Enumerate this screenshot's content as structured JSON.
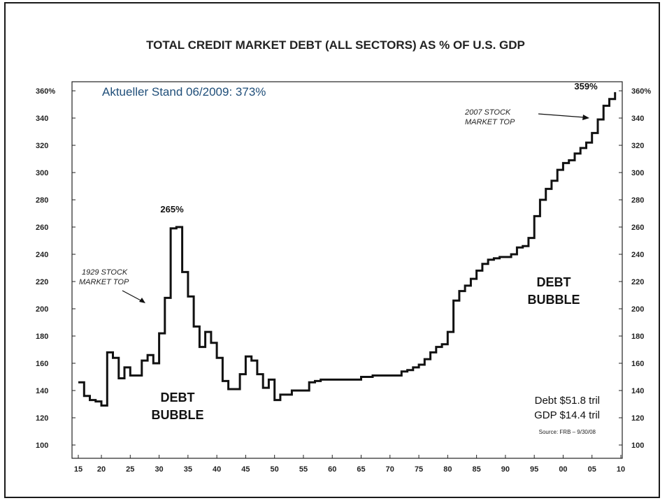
{
  "chart_data": {
    "type": "line",
    "title": "TOTAL CREDIT MARKET DEBT (ALL SECTORS) AS % OF U.S. GDP",
    "xlabel": "",
    "ylabel": "",
    "xlim": [
      1915,
      2010
    ],
    "ylim": [
      100,
      360
    ],
    "x_tick_labels": [
      "15",
      "20",
      "25",
      "30",
      "35",
      "40",
      "45",
      "50",
      "55",
      "60",
      "65",
      "70",
      "75",
      "80",
      "85",
      "90",
      "95",
      "00",
      "05",
      "10"
    ],
    "y_tick_labels": [
      "100",
      "120",
      "140",
      "160",
      "180",
      "200",
      "220",
      "240",
      "260",
      "280",
      "300",
      "320",
      "340",
      "360%"
    ],
    "y_tick_values": [
      100,
      120,
      140,
      160,
      180,
      200,
      220,
      240,
      260,
      280,
      300,
      320,
      340,
      360
    ],
    "step": true,
    "grid": false,
    "series": [
      {
        "x": [
          1916,
          1917,
          1918,
          1919,
          1920,
          1921,
          1922,
          1923,
          1924,
          1925,
          1926,
          1927,
          1928,
          1929,
          1930,
          1931,
          1932,
          1933,
          1934,
          1935,
          1936,
          1937,
          1938,
          1939,
          1940,
          1941,
          1942,
          1943,
          1944,
          1945,
          1946,
          1947,
          1948,
          1949,
          1950,
          1951,
          1952,
          1953,
          1954,
          1955,
          1956,
          1957,
          1958,
          1959,
          1960,
          1961,
          1962,
          1963,
          1964,
          1965,
          1966,
          1967,
          1968,
          1969,
          1970,
          1971,
          1972,
          1973,
          1974,
          1975,
          1976,
          1977,
          1978,
          1979,
          1980,
          1981,
          1982,
          1983,
          1984,
          1985,
          1986,
          1987,
          1988,
          1989,
          1990,
          1991,
          1992,
          1993,
          1994,
          1995,
          1996,
          1997,
          1998,
          1999,
          2000,
          2001,
          2002,
          2003,
          2004,
          2005,
          2006,
          2007,
          2008,
          2009
        ],
        "y": [
          146,
          136,
          133,
          132,
          129,
          168,
          164,
          149,
          157,
          151,
          151,
          162,
          166,
          160,
          182,
          208,
          259,
          260,
          227,
          209,
          187,
          172,
          183,
          175,
          164,
          147,
          141,
          141,
          152,
          165,
          162,
          152,
          142,
          148,
          133,
          137,
          137,
          140,
          140,
          140,
          146,
          147,
          148,
          148,
          148,
          148,
          148,
          148,
          148,
          150,
          150,
          151,
          151,
          151,
          151,
          151,
          154,
          155,
          157,
          159,
          163,
          168,
          172,
          174,
          183,
          206,
          213,
          217,
          222,
          228,
          233,
          236,
          237,
          238,
          238,
          240,
          245,
          246,
          252,
          268,
          280,
          288,
          294,
          302,
          307,
          309,
          314,
          318,
          322,
          329,
          339,
          349,
          354,
          359
        ]
      }
    ]
  },
  "annotations": {
    "current_level": "Aktueller Stand 06/2009: 373%",
    "peak_1932": "265%",
    "peak_2008": "359%",
    "note_1929_line1": "1929 STOCK",
    "note_1929_line2": "MARKET TOP",
    "note_2007_line1": "2007 STOCK",
    "note_2007_line2": "MARKET TOP",
    "bubble_left_line1": "DEBT",
    "bubble_left_line2": "BUBBLE",
    "bubble_right_line1": "DEBT",
    "bubble_right_line2": "BUBBLE",
    "debt_line": "Debt  $51.8 tril",
    "gdp_line": "GDP  $14.4 tril",
    "source": "Source: FRB – 9/30/08"
  },
  "colors": {
    "line": "#111111",
    "axis": "#222222",
    "current_level_text": "#1f4e79"
  }
}
